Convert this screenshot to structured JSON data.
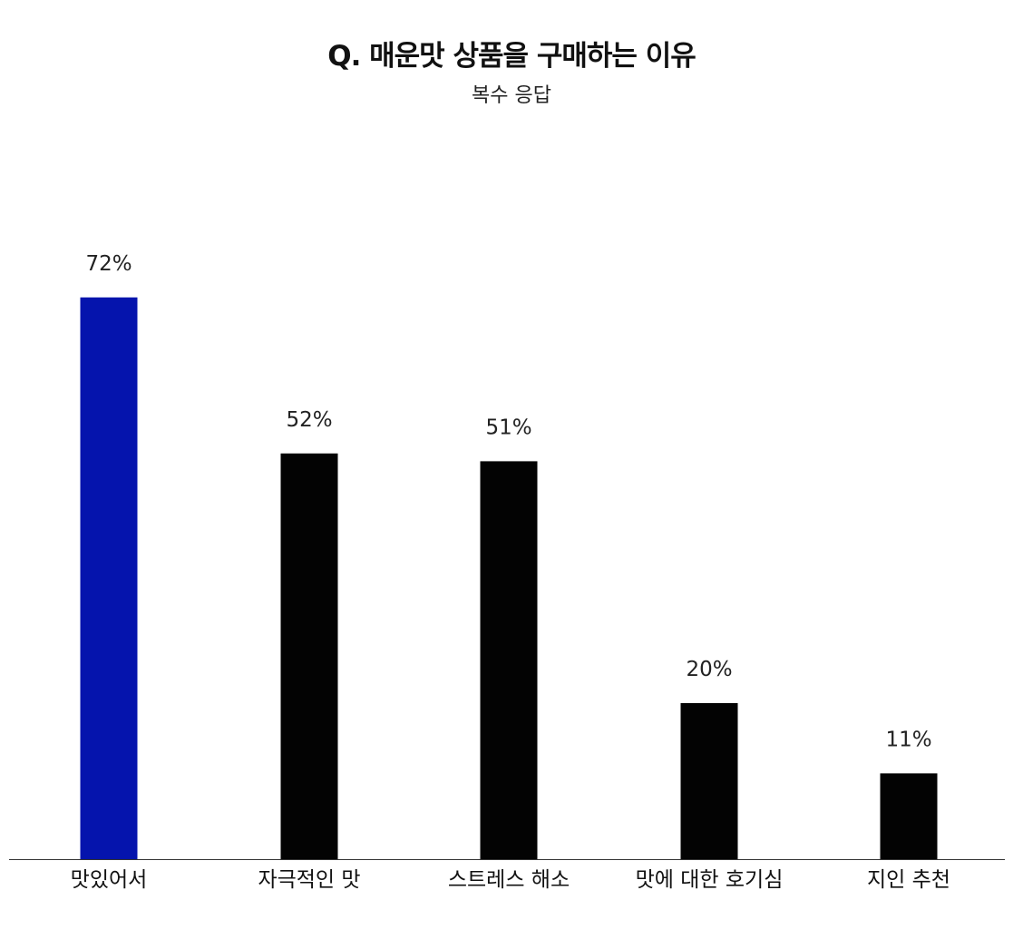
{
  "chart_data": {
    "type": "bar",
    "title": "Q. 매운맛 상품을 구매하는 이유",
    "subtitle": "복수 응답",
    "categories": [
      "맛있어서",
      "자극적인 맛",
      "스트레스 해소",
      "맛에 대한 호기심",
      "지인 추천"
    ],
    "values": [
      72,
      52,
      51,
      20,
      11
    ],
    "value_labels": [
      "72%",
      "52%",
      "51%",
      "20%",
      "11%"
    ],
    "unit": "%",
    "highlight_index": 0,
    "ylim": [
      0,
      100
    ],
    "grid": false,
    "legend": "none",
    "colors": {
      "highlight": "#0514AD",
      "default": "#030303",
      "axis": "#333333"
    }
  }
}
